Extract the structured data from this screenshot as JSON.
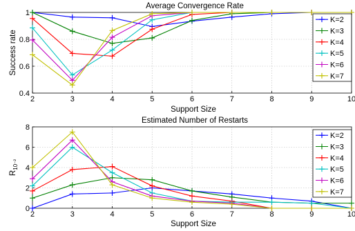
{
  "chart_data": [
    {
      "type": "line",
      "title": "Average Convergence Rate",
      "xlabel": "Support Size",
      "ylabel": "Success rate",
      "ylabel_sub": "",
      "xlim": [
        2,
        10
      ],
      "ylim": [
        0.4,
        1.0
      ],
      "xticks": [
        "2",
        "3",
        "4",
        "5",
        "6",
        "7",
        "8",
        "9",
        "10"
      ],
      "yticks": [
        "0.4",
        "0.6",
        "0.8",
        "1"
      ],
      "grid": true,
      "legend_position": "right",
      "x": [
        2,
        3,
        4,
        5,
        6,
        7,
        8,
        9,
        10
      ],
      "series": [
        {
          "name": "K=2",
          "color": "#0000ff",
          "values": [
            1.0,
            0.965,
            0.96,
            0.895,
            0.935,
            0.965,
            0.99,
            1.0,
            1.0
          ]
        },
        {
          "name": "K=3",
          "color": "#008000",
          "values": [
            1.0,
            0.86,
            0.77,
            0.81,
            0.94,
            0.99,
            1.0,
            1.0,
            1.0
          ]
        },
        {
          "name": "K=4",
          "color": "#ff0000",
          "values": [
            0.955,
            0.695,
            0.675,
            0.875,
            0.985,
            1.0,
            1.0,
            1.0,
            1.0
          ]
        },
        {
          "name": "K=5",
          "color": "#00c0c0",
          "values": [
            0.885,
            0.535,
            0.72,
            0.945,
            1.0,
            1.0,
            1.0,
            1.0,
            1.0
          ]
        },
        {
          "name": "K=6",
          "color": "#c000c0",
          "values": [
            0.795,
            0.495,
            0.815,
            0.975,
            1.0,
            1.0,
            1.0,
            1.0,
            1.0
          ]
        },
        {
          "name": "K=7",
          "color": "#c0c000",
          "values": [
            0.685,
            0.46,
            0.865,
            0.99,
            1.0,
            1.0,
            1.0,
            1.0,
            1.0
          ]
        }
      ]
    },
    {
      "type": "line",
      "title": "Estimated Number of Restarts",
      "xlabel": "Support Size",
      "ylabel": "R",
      "ylabel_sub": "10⁻²",
      "xlim": [
        2,
        10
      ],
      "ylim": [
        0,
        8
      ],
      "xticks": [
        "2",
        "3",
        "4",
        "5",
        "6",
        "7",
        "8",
        "9",
        "10"
      ],
      "yticks": [
        "0",
        "2",
        "4",
        "6",
        "8"
      ],
      "grid": true,
      "legend_position": "right",
      "x": [
        2,
        3,
        4,
        5,
        6,
        7,
        8,
        9,
        10
      ],
      "series": [
        {
          "name": "K=2",
          "color": "#0000ff",
          "values": [
            0.0,
            1.4,
            1.5,
            2.0,
            1.7,
            1.4,
            1.0,
            0.7,
            0.0
          ]
        },
        {
          "name": "K=3",
          "color": "#008000",
          "values": [
            1.0,
            2.3,
            3.0,
            2.8,
            1.7,
            1.1,
            0.6,
            0.5,
            0.5
          ]
        },
        {
          "name": "K=4",
          "color": "#ff0000",
          "values": [
            1.7,
            3.8,
            4.1,
            2.2,
            1.2,
            0.7,
            0.0,
            0.0,
            0.0
          ]
        },
        {
          "name": "K=5",
          "color": "#00c0c0",
          "values": [
            2.2,
            6.0,
            3.5,
            1.5,
            0.7,
            0.6,
            0.6,
            0.5,
            0.0
          ]
        },
        {
          "name": "K=6",
          "color": "#c000c0",
          "values": [
            2.9,
            6.7,
            2.6,
            1.2,
            0.7,
            0.5,
            0.0,
            0.0,
            0.0
          ]
        },
        {
          "name": "K=7",
          "color": "#c0c000",
          "values": [
            4.0,
            7.5,
            2.3,
            1.0,
            0.6,
            0.4,
            0.0,
            0.0,
            0.0
          ]
        }
      ]
    }
  ]
}
